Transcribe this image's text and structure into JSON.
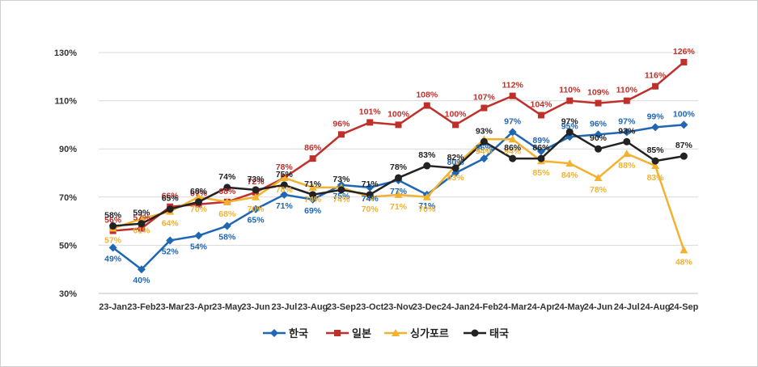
{
  "chart_data": {
    "type": "line",
    "title": "",
    "xlabel": "",
    "ylabel": "",
    "ylim": [
      30,
      130
    ],
    "yticks": [
      30,
      50,
      70,
      90,
      110,
      130
    ],
    "ytick_labels": [
      "30%",
      "50%",
      "70%",
      "90%",
      "110%",
      "130%"
    ],
    "grid": "horizontal",
    "legend_position": "bottom-center",
    "categories": [
      "23-Jan",
      "23-Feb",
      "23-Mar",
      "23-Apr",
      "23-May",
      "23-Jun",
      "23-Jul",
      "23-Aug",
      "23-Sep",
      "23-Oct",
      "23-Nov",
      "23-Dec",
      "24-Jan",
      "24-Feb",
      "24-Mar",
      "24-Apr",
      "24-May",
      "24-Jun",
      "24-Jul",
      "24-Aug",
      "24-Sep"
    ],
    "series": [
      {
        "name": "한국",
        "color": "#1f66b3",
        "marker": "diamond",
        "values": [
          49,
          40,
          52,
          54,
          58,
          65,
          71,
          69,
          75,
          74,
          77,
          71,
          80,
          86,
          97,
          89,
          95,
          96,
          97,
          99,
          100
        ],
        "labels": [
          "49%",
          "40%",
          "52%",
          "54%",
          "58%",
          "65%",
          "71%",
          "69%",
          "75%",
          "74%",
          "77%",
          "71%",
          "80%",
          "86%",
          "97%",
          "89%",
          "95%",
          "96%",
          "97%",
          "99%",
          "100%"
        ]
      },
      {
        "name": "일본",
        "color": "#c0302b",
        "marker": "square",
        "values": [
          56,
          57,
          66,
          67,
          68,
          72,
          78,
          86,
          96,
          101,
          100,
          108,
          100,
          107,
          112,
          104,
          110,
          109,
          110,
          116,
          126
        ],
        "labels": [
          "56%",
          "57%",
          "66%",
          "67%",
          "68%",
          "72%",
          "78%",
          "86%",
          "96%",
          "101%",
          "100%",
          "108%",
          "100%",
          "107%",
          "112%",
          "104%",
          "110%",
          "109%",
          "110%",
          "116%",
          "126%"
        ]
      },
      {
        "name": "싱가포르",
        "color": "#f2b230",
        "marker": "triangle",
        "values": [
          57,
          61,
          64,
          70,
          68,
          70,
          78,
          74,
          74,
          70,
          71,
          70,
          83,
          94,
          94,
          85,
          84,
          78,
          88,
          83,
          48
        ],
        "labels": [
          "57%",
          "61%",
          "64%",
          "70%",
          "68%",
          "70%",
          "78%",
          "74%",
          "74%",
          "70%",
          "71%",
          "70%",
          "83%",
          "94%",
          "94%",
          "85%",
          "84%",
          "78%",
          "88%",
          "83%",
          "48%"
        ]
      },
      {
        "name": "태국",
        "color": "#222222",
        "marker": "circle",
        "values": [
          58,
          59,
          65,
          68,
          74,
          73,
          75,
          71,
          73,
          71,
          78,
          83,
          82,
          93,
          86,
          86,
          97,
          90,
          93,
          85,
          87
        ],
        "labels": [
          "58%",
          "59%",
          "65%",
          "68%",
          "74%",
          "73%",
          "75%",
          "71%",
          "73%",
          "71%",
          "78%",
          "83%",
          "82%",
          "93%",
          "86%",
          "86%",
          "97%",
          "90%",
          "93%",
          "85%",
          "87%"
        ]
      }
    ]
  }
}
